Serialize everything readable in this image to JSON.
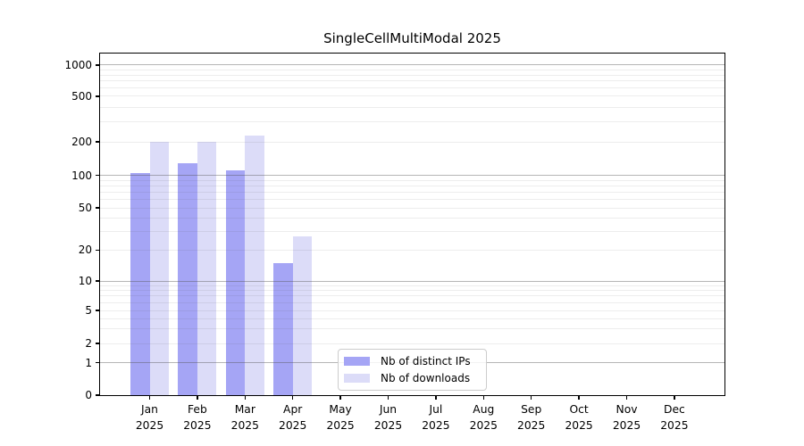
{
  "chart_data": {
    "type": "bar",
    "title": "SingleCellMultiModal 2025",
    "x_categories": [
      "Jan",
      "Feb",
      "Mar",
      "Apr",
      "May",
      "Jun",
      "Jul",
      "Aug",
      "Sep",
      "Oct",
      "Nov",
      "Dec"
    ],
    "x_sub_label": "2025",
    "series": [
      {
        "name": "Nb of distinct IPs",
        "color": "#a5a5f5",
        "values": [
          105,
          129,
          112,
          15,
          0,
          0,
          0,
          0,
          0,
          0,
          0,
          0
        ]
      },
      {
        "name": "Nb of downloads",
        "color": "#dcdcf8",
        "values": [
          200,
          200,
          225,
          27,
          0,
          0,
          0,
          0,
          0,
          0,
          0,
          0
        ]
      }
    ],
    "y_axis": {
      "scale": "log-style with zero baseline",
      "tick_labels": [
        0,
        1,
        2,
        5,
        10,
        20,
        50,
        100,
        200,
        500,
        1000
      ],
      "major_gridlines": [
        1,
        10,
        100,
        1000
      ],
      "minor_gridlines": [
        2,
        3,
        4,
        5,
        6,
        7,
        8,
        9,
        20,
        30,
        40,
        50,
        60,
        70,
        80,
        90,
        200,
        300,
        400,
        500,
        600,
        700,
        800,
        900
      ],
      "ylim": [
        0,
        1000
      ]
    },
    "grid": true,
    "legend": {
      "position": "lower-center-left",
      "items": [
        "Nb of distinct IPs",
        "Nb of downloads"
      ]
    }
  },
  "colors": {
    "distinct_ips_bar": "#a5a5f5",
    "downloads_bar": "#dcdcf8",
    "major_gridline": "#b9b9b9",
    "minor_gridline": "#ebebeb",
    "axis": "#000000",
    "legend_border": "#cccccc",
    "background": "#ffffff"
  }
}
